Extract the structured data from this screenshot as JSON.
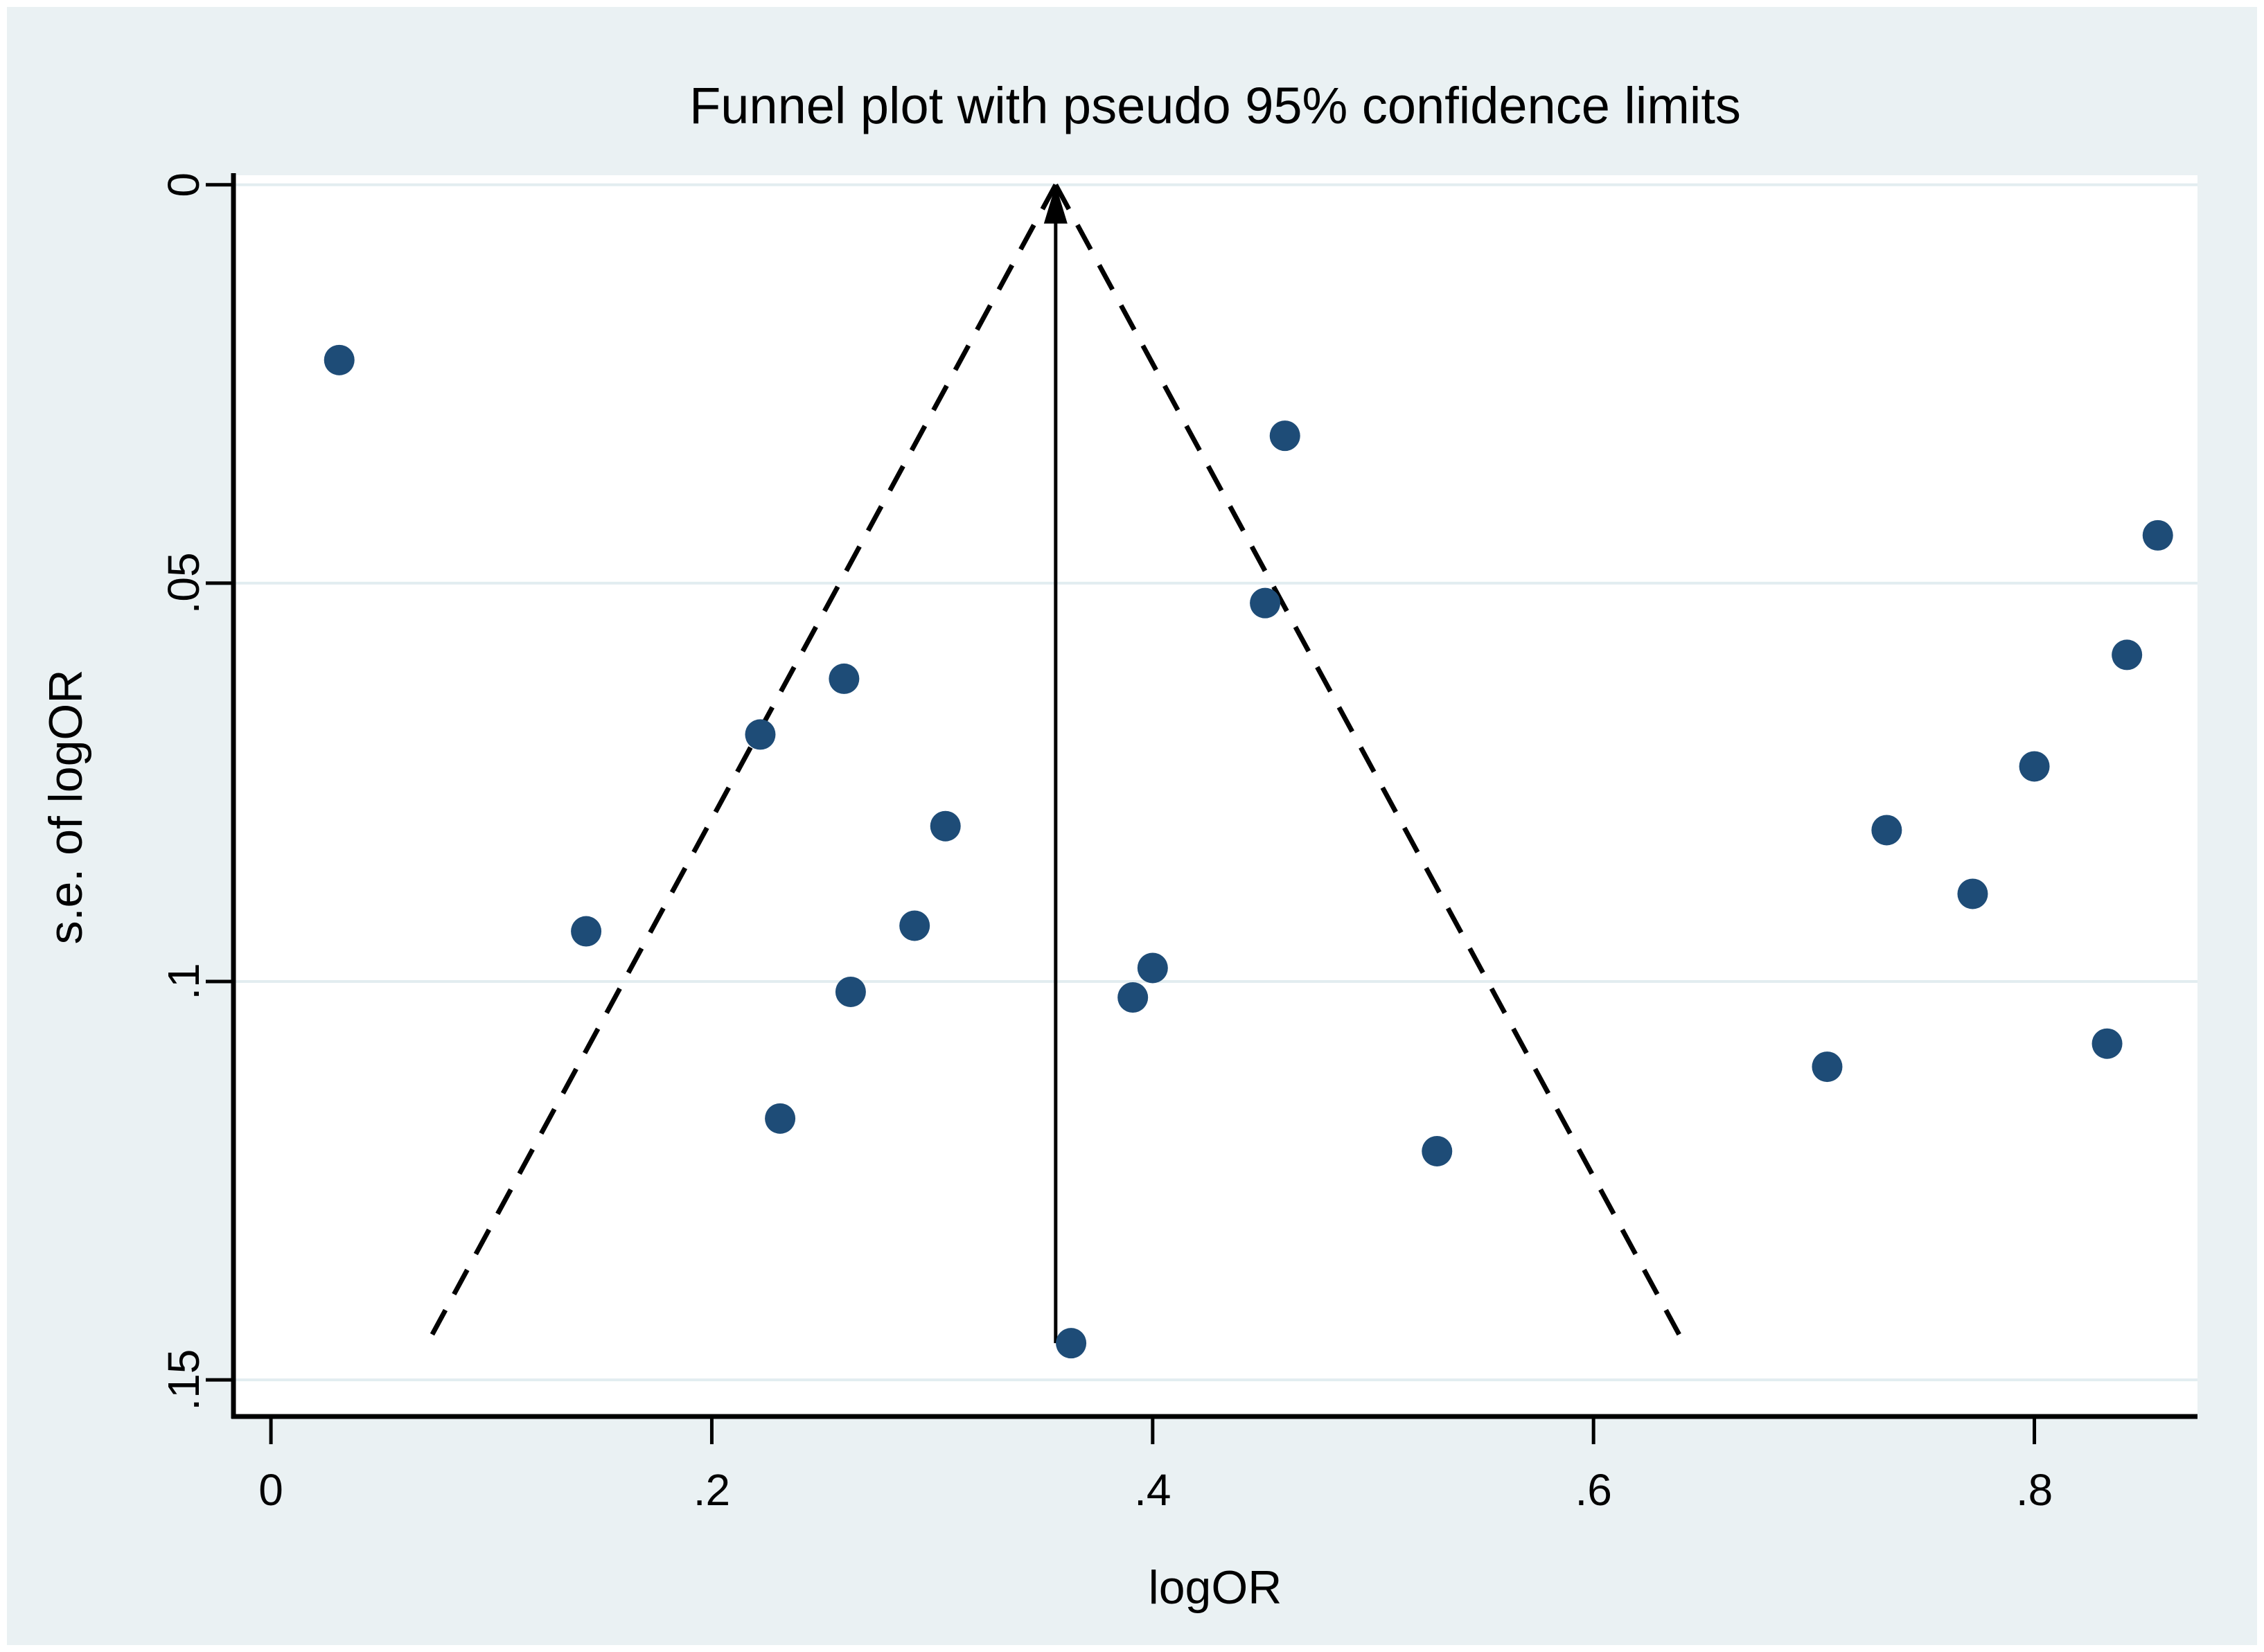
{
  "figure": {
    "title": "Funnel plot with pseudo 95% confidence limits",
    "x_axis": {
      "label": "logOR",
      "tick_labels": [
        "0",
        ".2",
        ".4",
        ".6",
        ".8"
      ],
      "tick_values": [
        0,
        0.2,
        0.4,
        0.6,
        0.8
      ]
    },
    "y_axis": {
      "label": "s.e. of logOR",
      "tick_labels": [
        "0",
        ".05",
        ".1",
        ".15"
      ],
      "tick_values": [
        0,
        0.05,
        0.1,
        0.15
      ],
      "inverted": true
    }
  },
  "chart_data": {
    "type": "scatter",
    "title": "Funnel plot with pseudo 95% confidence limits",
    "xlabel": "logOR",
    "ylabel": "s.e. of logOR",
    "xlim": [
      -0.017,
      0.874
    ],
    "ylim": [
      -0.0012,
      0.1546
    ],
    "grid": "horizontal-only",
    "legend": "none",
    "points": [
      {
        "logOR": 0.031,
        "se": 0.022
      },
      {
        "logOR": 0.46,
        "se": 0.0315
      },
      {
        "logOR": 0.451,
        "se": 0.0525
      },
      {
        "logOR": 0.856,
        "se": 0.044
      },
      {
        "logOR": 0.842,
        "se": 0.059
      },
      {
        "logOR": 0.26,
        "se": 0.062
      },
      {
        "logOR": 0.222,
        "se": 0.069
      },
      {
        "logOR": 0.8,
        "se": 0.073
      },
      {
        "logOR": 0.306,
        "se": 0.0805
      },
      {
        "logOR": 0.733,
        "se": 0.081
      },
      {
        "logOR": 0.772,
        "se": 0.089
      },
      {
        "logOR": 0.143,
        "se": 0.0937
      },
      {
        "logOR": 0.292,
        "se": 0.093
      },
      {
        "logOR": 0.263,
        "se": 0.1013
      },
      {
        "logOR": 0.391,
        "se": 0.102
      },
      {
        "logOR": 0.4,
        "se": 0.0983
      },
      {
        "logOR": 0.833,
        "se": 0.1078
      },
      {
        "logOR": 0.706,
        "se": 0.1107
      },
      {
        "logOR": 0.231,
        "se": 0.1172
      },
      {
        "logOR": 0.529,
        "se": 0.1213
      },
      {
        "logOR": 0.363,
        "se": 0.1454
      }
    ],
    "center_logOR": 0.356,
    "ci_multiplier": 1.96,
    "funnel_max_se": 0.1454,
    "center_line_style": "solid-with-up-arrow",
    "funnel_line_style": "dashed",
    "colors": {
      "marker": "#1e4c77",
      "plot_background": "#ffffff",
      "figure_background": "#eaf1f3",
      "outer_frame": "#ffffff",
      "gridline": "#e2edf0",
      "axis_and_lines": "#000000"
    }
  }
}
